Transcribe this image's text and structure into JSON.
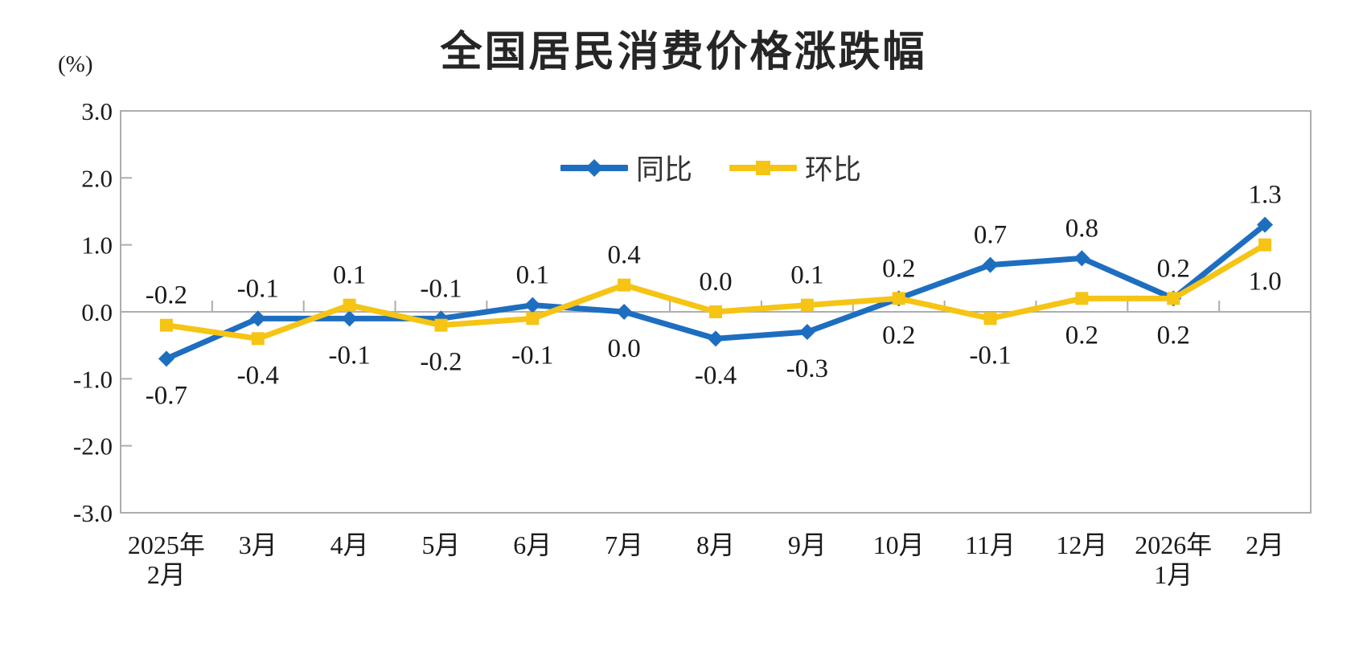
{
  "title": "全国居民消费价格涨跌幅",
  "unit_label": "(%)",
  "chart_data": {
    "type": "line",
    "categories": [
      "2025年\n2月",
      "3月",
      "4月",
      "5月",
      "6月",
      "7月",
      "8月",
      "9月",
      "10月",
      "11月",
      "12月",
      "2026年\n1月",
      "2月"
    ],
    "series": [
      {
        "name": "同比",
        "color": "#1E6EC0",
        "marker": "diamond",
        "values": [
          -0.7,
          -0.1,
          -0.1,
          -0.1,
          0.1,
          0.0,
          -0.4,
          -0.3,
          0.2,
          0.7,
          0.8,
          0.2,
          1.3
        ]
      },
      {
        "name": "环比",
        "color": "#F5C414",
        "marker": "square",
        "values": [
          -0.2,
          -0.4,
          0.1,
          -0.2,
          -0.1,
          0.4,
          0.0,
          0.1,
          0.2,
          -0.1,
          0.2,
          0.2,
          1.0
        ]
      }
    ],
    "ylim": [
      -3.0,
      3.0
    ],
    "ytick_step": 1.0,
    "ytick_labels": [
      "3.0",
      "2.0",
      "1.0",
      "0.0",
      "-1.0",
      "-2.0",
      "-3.0"
    ],
    "grid": "zero-line-only",
    "legend_position": "top-center",
    "axis_color": "#ADADAD",
    "text_color": "#1A1A1A"
  }
}
